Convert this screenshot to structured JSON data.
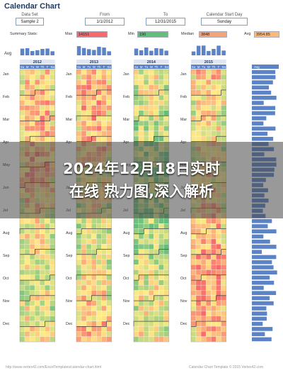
{
  "app": {
    "title": "Calendar Chart"
  },
  "controls": [
    {
      "label": "Data Set",
      "value": "Sample 2"
    },
    {
      "label": "From",
      "value": "1/1/2012"
    },
    {
      "label": "To",
      "value": "12/31/2015"
    },
    {
      "label": "Calendar Start Day",
      "value": "Sunday"
    }
  ],
  "stats": {
    "label": "Summary Stats:",
    "min_label": "Min",
    "min_value": "190",
    "max_label": "Max",
    "max_value": "14151",
    "median_label": "Median",
    "median_value": "3848",
    "avg_label": "Avg",
    "avg_value": "3954.85"
  },
  "avg_label": "Avg",
  "day_letters": [
    "Su",
    "M",
    "Tu",
    "W",
    "Th",
    "F",
    "Sa"
  ],
  "years": [
    "2012",
    "2013",
    "2014",
    "2015"
  ],
  "months": [
    "Jan",
    "Feb",
    "Mar",
    "Apr",
    "May",
    "Jun",
    "Jul",
    "Aug",
    "Sep",
    "Oct",
    "Nov",
    "Dec"
  ],
  "side_avg_label": "Avg",
  "banner": {
    "line1": "2024年12月18日实时",
    "line2": "在线 热力图,深入解析"
  },
  "footer": {
    "url": "http://www.vertex42.com/ExcelTemplates/calendar-chart.html",
    "credit": "Calendar Chart Template © 2015 Vertex42.com"
  },
  "colors": {
    "low": "#63be7b",
    "mid": "#ffeb84",
    "high": "#f8696b",
    "bar": "#5b83c6",
    "title": "#1f3b63",
    "control_border": "#7f9fc9"
  }
}
